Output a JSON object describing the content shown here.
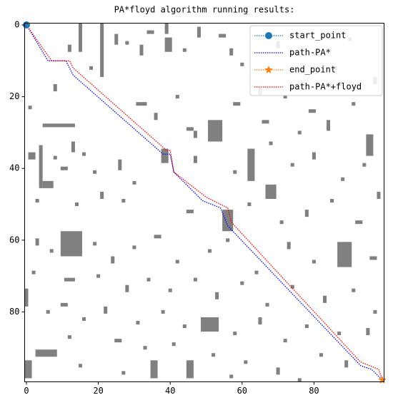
{
  "chart_data": {
    "type": "grid",
    "title": "PA*floyd algorithm running results:",
    "xlim": [
      -0.5,
      99.5
    ],
    "ylim": [
      99.5,
      -0.5
    ],
    "xticks": [
      0,
      20,
      40,
      60,
      80
    ],
    "yticks": [
      0,
      20,
      40,
      60,
      80
    ],
    "obstacle_color": "#808080",
    "obstacles": [
      [
        15,
        0,
        1,
        8
      ],
      [
        21,
        0,
        1,
        15
      ],
      [
        10,
        58,
        6,
        7
      ],
      [
        51,
        27,
        4,
        6
      ],
      [
        87,
        61,
        4,
        7
      ],
      [
        95,
        31,
        2,
        6
      ],
      [
        0,
        74,
        1,
        5
      ],
      [
        0,
        94,
        2,
        5
      ],
      [
        3,
        91,
        6,
        2
      ],
      [
        49,
        82,
        5,
        4
      ],
      [
        39,
        4,
        2,
        4
      ],
      [
        5,
        44,
        3,
        2
      ],
      [
        5,
        28,
        9,
        1
      ],
      [
        4,
        34,
        1,
        12
      ],
      [
        62,
        35,
        2,
        9
      ],
      [
        55,
        52,
        3,
        6
      ],
      [
        67,
        45,
        3,
        4
      ],
      [
        38,
        35,
        2,
        4
      ],
      [
        35,
        94,
        2,
        5
      ],
      [
        45,
        94,
        2,
        5
      ],
      [
        39,
        0,
        1,
        3
      ],
      [
        12,
        6,
        1,
        2
      ],
      [
        25,
        3,
        1,
        3
      ],
      [
        28,
        5,
        1,
        1
      ],
      [
        34,
        2,
        2,
        1
      ],
      [
        32,
        6,
        1,
        3
      ],
      [
        48,
        1,
        1,
        3
      ],
      [
        54,
        3,
        2,
        1
      ],
      [
        57,
        7,
        1,
        2
      ],
      [
        60,
        11,
        1,
        1
      ],
      [
        70,
        5,
        1,
        2
      ],
      [
        74,
        3,
        1,
        1
      ],
      [
        80,
        8,
        2,
        1
      ],
      [
        86,
        12,
        1,
        1
      ],
      [
        90,
        4,
        1,
        1
      ],
      [
        44,
        7,
        1,
        1
      ],
      [
        18,
        12,
        1,
        1
      ],
      [
        8,
        17,
        1,
        2
      ],
      [
        1,
        23,
        1,
        1
      ],
      [
        31,
        22,
        3,
        1
      ],
      [
        36,
        25,
        1,
        2
      ],
      [
        42,
        20,
        1,
        1
      ],
      [
        58,
        22,
        2,
        1
      ],
      [
        65,
        18,
        1,
        2
      ],
      [
        72,
        20,
        1,
        1
      ],
      [
        79,
        24,
        2,
        1
      ],
      [
        84,
        27,
        1,
        3
      ],
      [
        91,
        22,
        1,
        1
      ],
      [
        97,
        15,
        1,
        2
      ],
      [
        45,
        29,
        2,
        1
      ],
      [
        47,
        30,
        1,
        2
      ],
      [
        68,
        33,
        1,
        1
      ],
      [
        76,
        30,
        1,
        1
      ],
      [
        66,
        27,
        2,
        1
      ],
      [
        13,
        33,
        1,
        3
      ],
      [
        16,
        36,
        1,
        1
      ],
      [
        1,
        36,
        2,
        2
      ],
      [
        8,
        37,
        1,
        1
      ],
      [
        10,
        40,
        2,
        1
      ],
      [
        19,
        41,
        1,
        1
      ],
      [
        26,
        38,
        1,
        3
      ],
      [
        30,
        44,
        1,
        1
      ],
      [
        47,
        37,
        1,
        2
      ],
      [
        58,
        41,
        1,
        1
      ],
      [
        74,
        39,
        1,
        1
      ],
      [
        80,
        36,
        1,
        2
      ],
      [
        88,
        43,
        1,
        1
      ],
      [
        94,
        39,
        1,
        1
      ],
      [
        98,
        47,
        1,
        2
      ],
      [
        3,
        49,
        1,
        1
      ],
      [
        14,
        50,
        1,
        1
      ],
      [
        21,
        47,
        1,
        2
      ],
      [
        27,
        49,
        1,
        1
      ],
      [
        45,
        52,
        2,
        1
      ],
      [
        62,
        50,
        1,
        1
      ],
      [
        71,
        55,
        1,
        1
      ],
      [
        78,
        52,
        1,
        2
      ],
      [
        85,
        49,
        1,
        1
      ],
      [
        92,
        55,
        2,
        1
      ],
      [
        3,
        60,
        1,
        2
      ],
      [
        7,
        63,
        1,
        1
      ],
      [
        19,
        61,
        1,
        1
      ],
      [
        24,
        65,
        1,
        2
      ],
      [
        30,
        62,
        1,
        1
      ],
      [
        36,
        59,
        2,
        1
      ],
      [
        42,
        66,
        1,
        1
      ],
      [
        51,
        63,
        1,
        1
      ],
      [
        56,
        60,
        1,
        1
      ],
      [
        64,
        69,
        1,
        1
      ],
      [
        73,
        61,
        1,
        2
      ],
      [
        80,
        66,
        1,
        1
      ],
      [
        96,
        65,
        2,
        1
      ],
      [
        2,
        69,
        1,
        1
      ],
      [
        11,
        71,
        3,
        1
      ],
      [
        20,
        70,
        1,
        1
      ],
      [
        28,
        73,
        1,
        2
      ],
      [
        34,
        71,
        1,
        1
      ],
      [
        40,
        74,
        1,
        1
      ],
      [
        47,
        71,
        1,
        1
      ],
      [
        53,
        75,
        1,
        2
      ],
      [
        60,
        72,
        1,
        1
      ],
      [
        67,
        78,
        1,
        1
      ],
      [
        74,
        73,
        1,
        1
      ],
      [
        83,
        76,
        1,
        2
      ],
      [
        91,
        74,
        1,
        1
      ],
      [
        97,
        80,
        1,
        1
      ],
      [
        6,
        80,
        1,
        1
      ],
      [
        10,
        78,
        2,
        1
      ],
      [
        16,
        82,
        1,
        1
      ],
      [
        22,
        79,
        1,
        2
      ],
      [
        31,
        83,
        1,
        1
      ],
      [
        38,
        80,
        1,
        1
      ],
      [
        44,
        84,
        1,
        1
      ],
      [
        58,
        86,
        1,
        1
      ],
      [
        65,
        82,
        1,
        2
      ],
      [
        72,
        88,
        1,
        1
      ],
      [
        78,
        84,
        1,
        1
      ],
      [
        87,
        86,
        1,
        1
      ],
      [
        95,
        85,
        1,
        2
      ],
      [
        12,
        87,
        1,
        1
      ],
      [
        25,
        88,
        2,
        1
      ],
      [
        33,
        90,
        1,
        1
      ],
      [
        41,
        89,
        1,
        1
      ],
      [
        52,
        92,
        1,
        1
      ],
      [
        61,
        94,
        1,
        1
      ],
      [
        70,
        96,
        1,
        2
      ],
      [
        82,
        92,
        1,
        1
      ],
      [
        89,
        94,
        1,
        2
      ],
      [
        15,
        95,
        1,
        1
      ],
      [
        27,
        97,
        1,
        1
      ],
      [
        57,
        98,
        1,
        1
      ],
      [
        76,
        99,
        1,
        1
      ]
    ],
    "series": [
      {
        "name": "start_point",
        "color": "#1f77b4",
        "marker": "circle",
        "line": true,
        "x": [
          0
        ],
        "y": [
          0
        ]
      },
      {
        "name": "path-PA*",
        "color": "#0000ff",
        "marker": null,
        "line": true,
        "x": [
          0,
          6,
          11,
          13,
          38,
          40,
          41,
          49,
          54,
          56,
          93,
          96,
          99
        ],
        "y": [
          0,
          10,
          10,
          14,
          36,
          36,
          41,
          49,
          51,
          56,
          95,
          96,
          99
        ]
      },
      {
        "name": "end_point",
        "color": "#ff7f0e",
        "marker": "star",
        "line": true,
        "x": [
          99
        ],
        "y": [
          99
        ]
      },
      {
        "name": "path-PA*+floyd",
        "color": "#ff0000",
        "marker": null,
        "line": true,
        "x": [
          0,
          7,
          12,
          13,
          39,
          40,
          41,
          50,
          56,
          57,
          93,
          98,
          99
        ],
        "y": [
          0,
          10,
          10,
          12,
          35,
          35,
          41,
          48,
          51,
          55,
          94,
          96,
          99
        ]
      }
    ]
  }
}
